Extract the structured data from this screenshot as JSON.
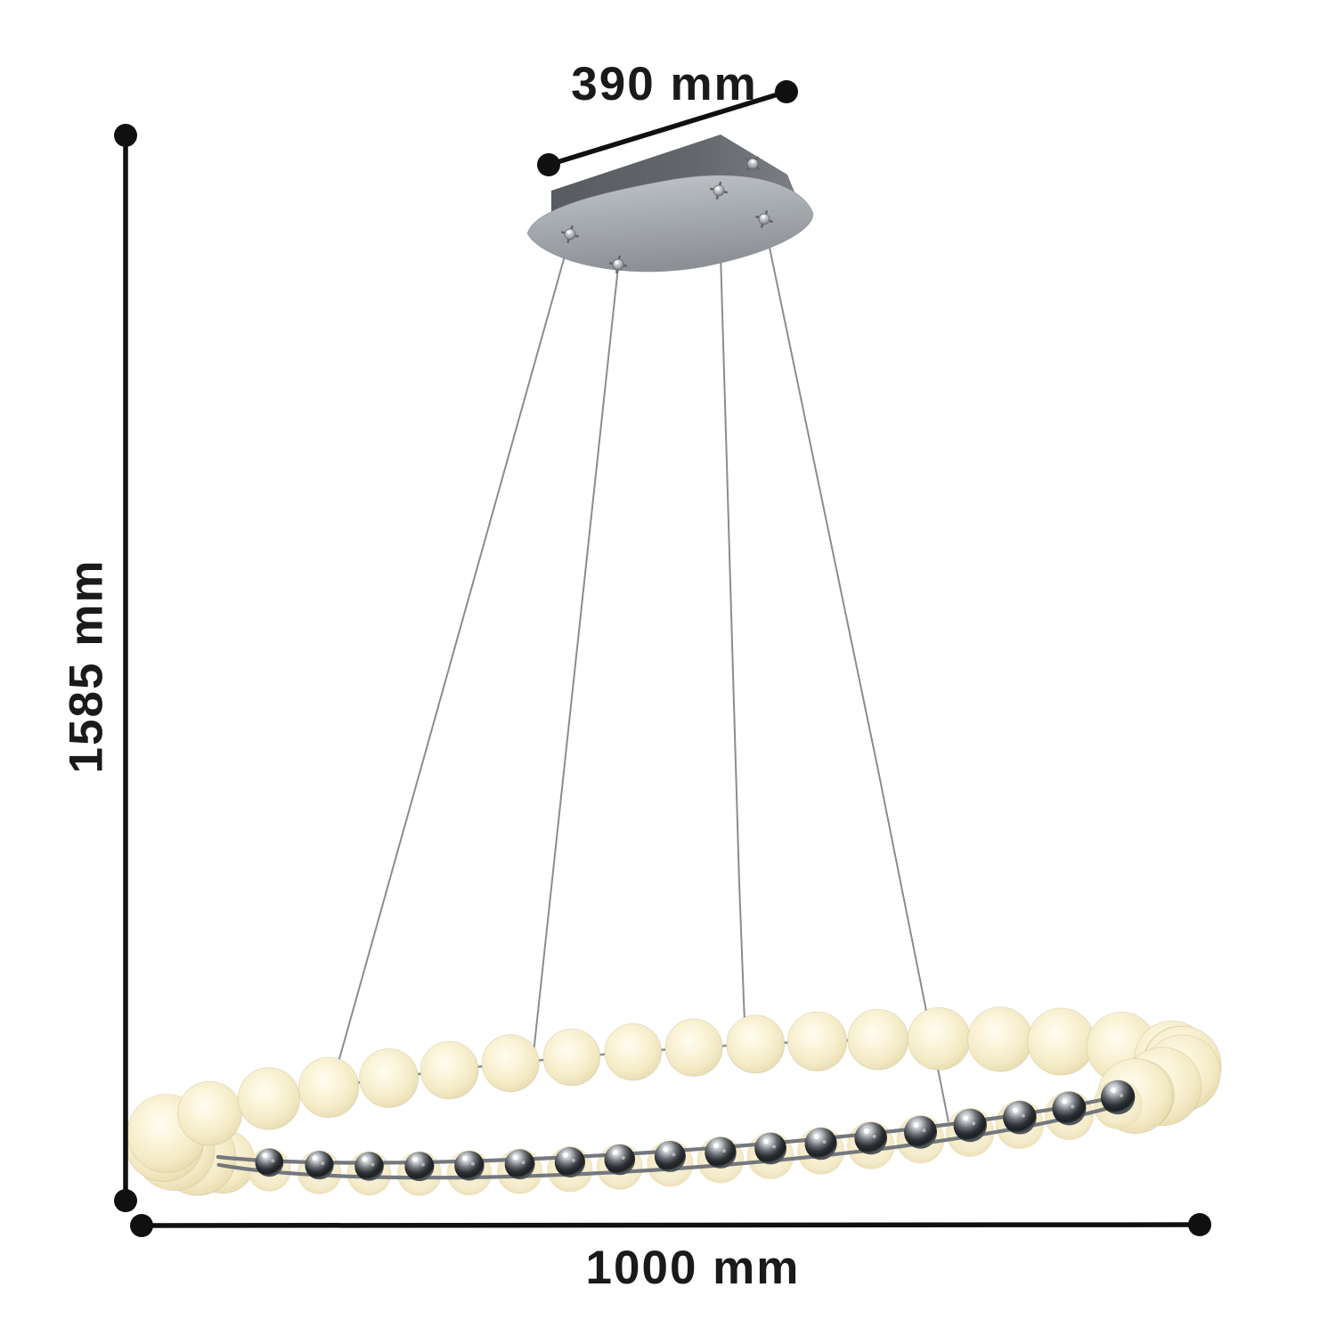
{
  "diagram": {
    "dimensions": {
      "canopy_width": "390 mm",
      "fixture_height": "1585 mm",
      "ring_width": "1000 mm"
    },
    "colors": {
      "background": "#ffffff",
      "dimension_line": "#101010",
      "glow_warm": "#f5ecc9",
      "chrome_dark": "#2c2f33",
      "canopy_gray": "#a9aeb3"
    }
  }
}
